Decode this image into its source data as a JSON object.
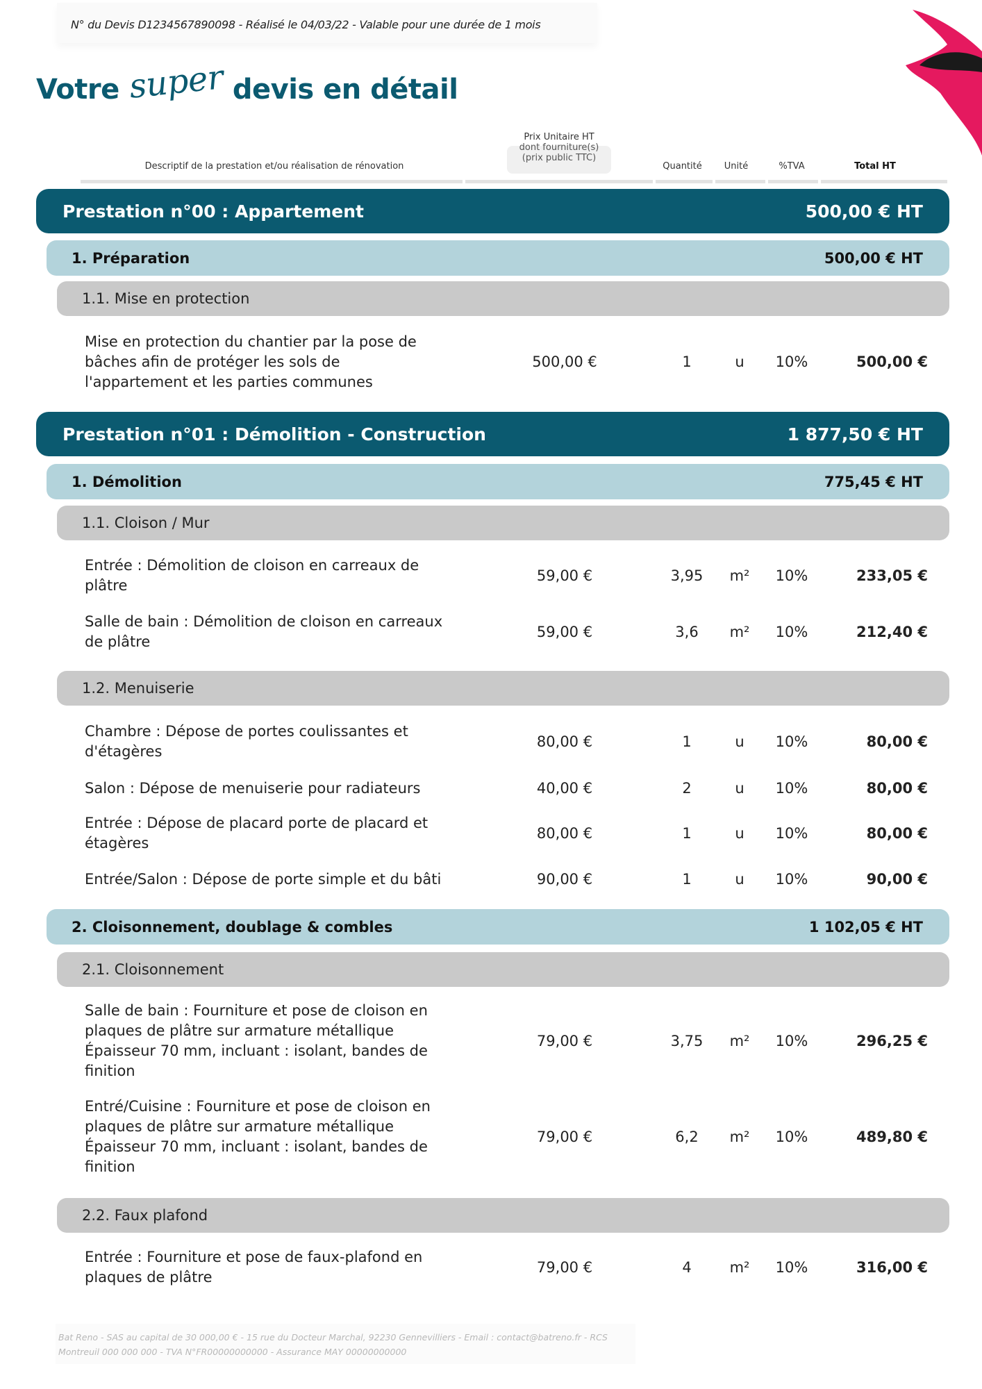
{
  "header": {
    "quote_info": "N° du Devis  D1234567890098 - Réalisé le 04/03/22 - Valable pour une durée de 1 mois",
    "title_before": "Votre",
    "title_script": "super",
    "title_after": "devis en détail"
  },
  "columns": {
    "description": "Descriptif de la prestation et/ou réalisation de rénovation",
    "price_line1": "Prix Unitaire HT",
    "price_line2": "dont fourniture(s)",
    "price_line3": "(prix public TTC)",
    "quantity": "Quantité",
    "unit": "Unité",
    "vat": "%TVA",
    "total": "Total HT"
  },
  "colors": {
    "prestation": "#0b5a70",
    "category": "#b3d3db",
    "subcategory": "#c9c9c9",
    "accent": "#e5195f"
  },
  "items": [
    {
      "type": "prest",
      "title": "Prestation n°00 : Appartement",
      "total": "500,00 € HT"
    },
    {
      "type": "cat",
      "title": "1. Préparation",
      "total": "500,00 € HT"
    },
    {
      "type": "sub",
      "title": "1.1. Mise en protection"
    },
    {
      "type": "row",
      "desc": [
        "Mise en protection du chantier par la pose de",
        "bâches afin de protéger les sols de",
        "l'appartement et les parties communes"
      ],
      "price": "500,00 €",
      "qty": "1",
      "unit": "u",
      "vat": "10%",
      "total": "500,00 €"
    },
    {
      "type": "prest",
      "title": "Prestation n°01 : Démolition - Construction",
      "total": "1 877,50 € HT"
    },
    {
      "type": "cat",
      "title": "1. Démolition",
      "total": "775,45 € HT"
    },
    {
      "type": "sub",
      "title": "1.1. Cloison / Mur"
    },
    {
      "type": "row",
      "desc": [
        "Entrée : Démolition de cloison en carreaux de",
        "plâtre"
      ],
      "price": "59,00 €",
      "qty": "3,95",
      "unit": "m²",
      "vat": "10%",
      "total": "233,05 €"
    },
    {
      "type": "row",
      "desc": [
        "Salle de bain : Démolition de cloison en carreaux",
        "de plâtre"
      ],
      "price": "59,00 €",
      "qty": "3,6",
      "unit": "m²",
      "vat": "10%",
      "total": "212,40 €"
    },
    {
      "type": "sub",
      "title": "1.2. Menuiserie"
    },
    {
      "type": "row",
      "desc": [
        "Chambre : Dépose de portes coulissantes et",
        "d'étagères"
      ],
      "price": "80,00 €",
      "qty": "1",
      "unit": "u",
      "vat": "10%",
      "total": "80,00 €"
    },
    {
      "type": "row",
      "desc": [
        "Salon : Dépose de menuiserie pour radiateurs"
      ],
      "price": "40,00 €",
      "qty": "2",
      "unit": "u",
      "vat": "10%",
      "total": "80,00 €"
    },
    {
      "type": "row",
      "desc": [
        "Entrée : Dépose de placard porte de placard et",
        "étagères"
      ],
      "price": "80,00 €",
      "qty": "1",
      "unit": "u",
      "vat": "10%",
      "total": "80,00 €"
    },
    {
      "type": "row",
      "desc": [
        "Entrée/Salon : Dépose de porte simple et du bâti"
      ],
      "price": "90,00 €",
      "qty": "1",
      "unit": "u",
      "vat": "10%",
      "total": "90,00 €"
    },
    {
      "type": "cat",
      "title": "2. Cloisonnement, doublage & combles",
      "total": "1 102,05 € HT"
    },
    {
      "type": "sub",
      "title": "2.1. Cloisonnement"
    },
    {
      "type": "row",
      "desc": [
        "Salle de bain : Fourniture et pose de cloison en",
        "plaques de plâtre sur armature métallique",
        "Épaisseur 70 mm, incluant : isolant, bandes de",
        "finition"
      ],
      "price": "79,00 €",
      "qty": "3,75",
      "unit": "m²",
      "vat": "10%",
      "total": "296,25 €"
    },
    {
      "type": "row",
      "desc": [
        "Entré/Cuisine : Fourniture et pose de cloison en",
        "plaques de plâtre sur armature métallique",
        "Épaisseur 70 mm, incluant : isolant, bandes de",
        "finition"
      ],
      "price": "79,00 €",
      "qty": "6,2",
      "unit": "m²",
      "vat": "10%",
      "total": "489,80 €"
    },
    {
      "type": "sub",
      "title": "2.2. Faux plafond"
    },
    {
      "type": "row",
      "desc": [
        "Entrée : Fourniture et pose de faux-plafond en",
        "plaques de plâtre"
      ],
      "price": "79,00 €",
      "qty": "4",
      "unit": "m²",
      "vat": "10%",
      "total": "316,00 €"
    }
  ],
  "footer": {
    "line1": "Bat Reno - SAS au capital de 30 000,00 € - 15 rue du Docteur Marchal, 92230 Gennevilliers - Email : contact@batreno.fr - RCS",
    "line2": "Montreuil 000 000 000 - TVA N°FR00000000000 - Assurance MAY 00000000000"
  }
}
